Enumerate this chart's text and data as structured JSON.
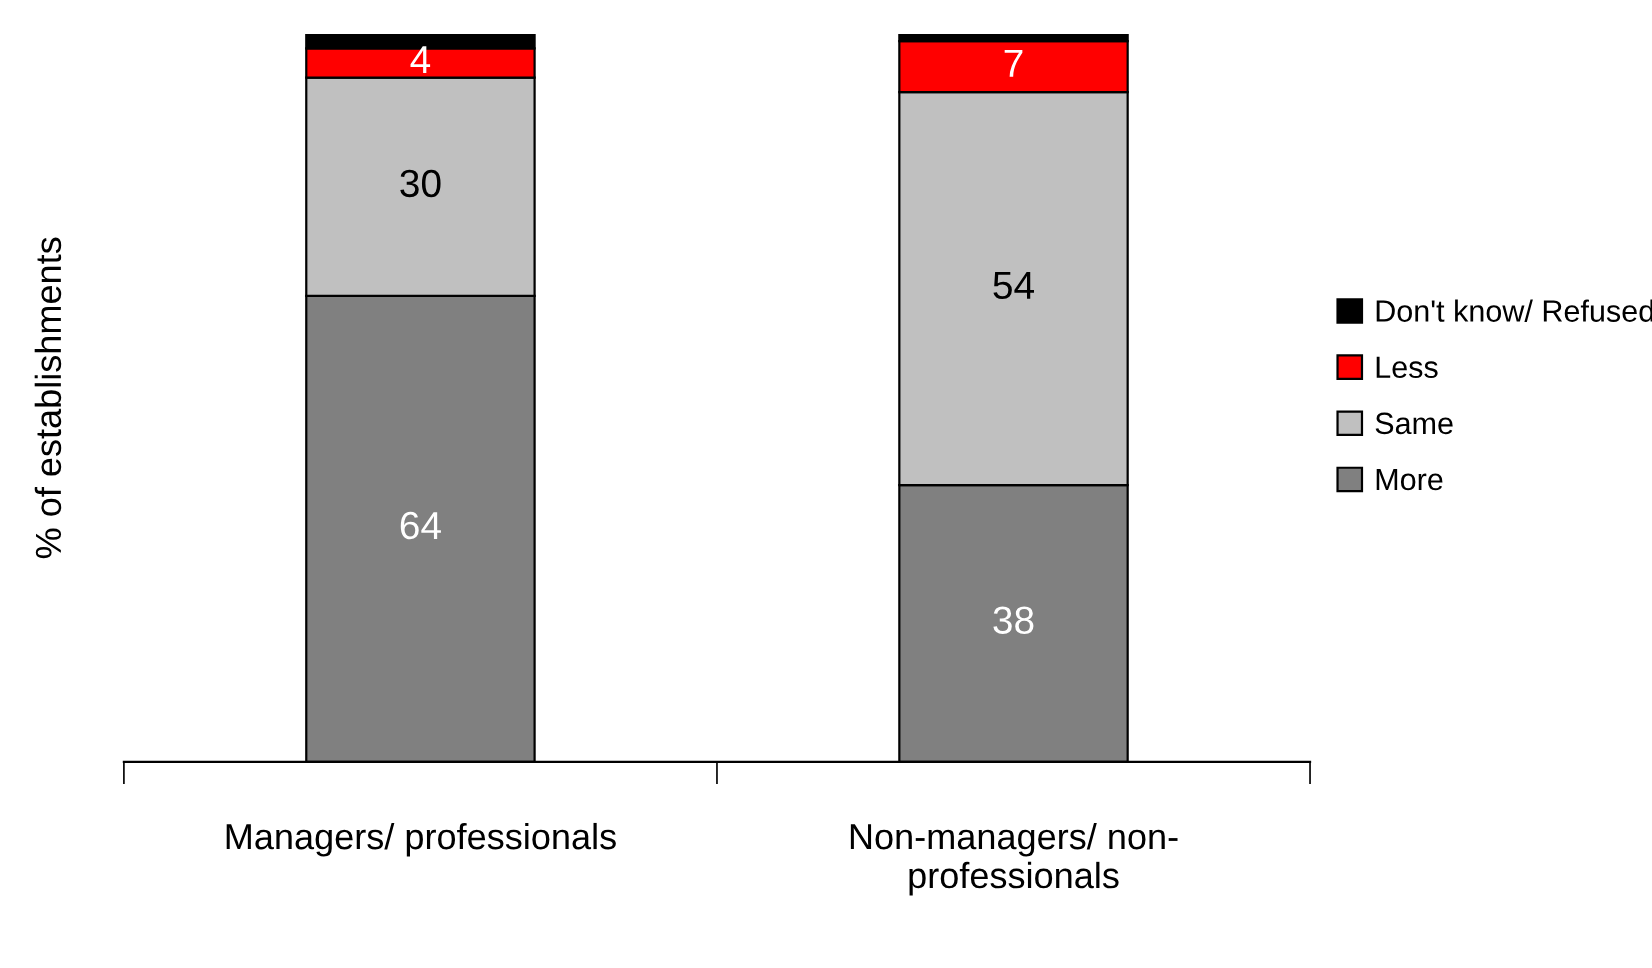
{
  "chart_data": {
    "type": "bar",
    "stacked": true,
    "ylabel": "% of establishments",
    "categories": [
      "Managers/ professionals",
      "Non-managers/ non-\nprofessionals"
    ],
    "series": [
      {
        "name": "More",
        "color": "#808080",
        "values": [
          64,
          38
        ],
        "value_labels": [
          "64",
          "38"
        ]
      },
      {
        "name": "Same",
        "color": "#c0c0c0",
        "values": [
          30,
          54
        ],
        "value_labels": [
          "30",
          "54"
        ]
      },
      {
        "name": "Less",
        "color": "#ff0000",
        "values": [
          4,
          7
        ],
        "value_labels": [
          "4",
          "7"
        ]
      },
      {
        "name": "Don't know/ Refused",
        "color": "#000000",
        "values": [
          2,
          1
        ],
        "value_labels": [
          null,
          null
        ]
      }
    ],
    "ylim": [
      0,
      100
    ],
    "tick_labels": "x",
    "legend": "right"
  }
}
